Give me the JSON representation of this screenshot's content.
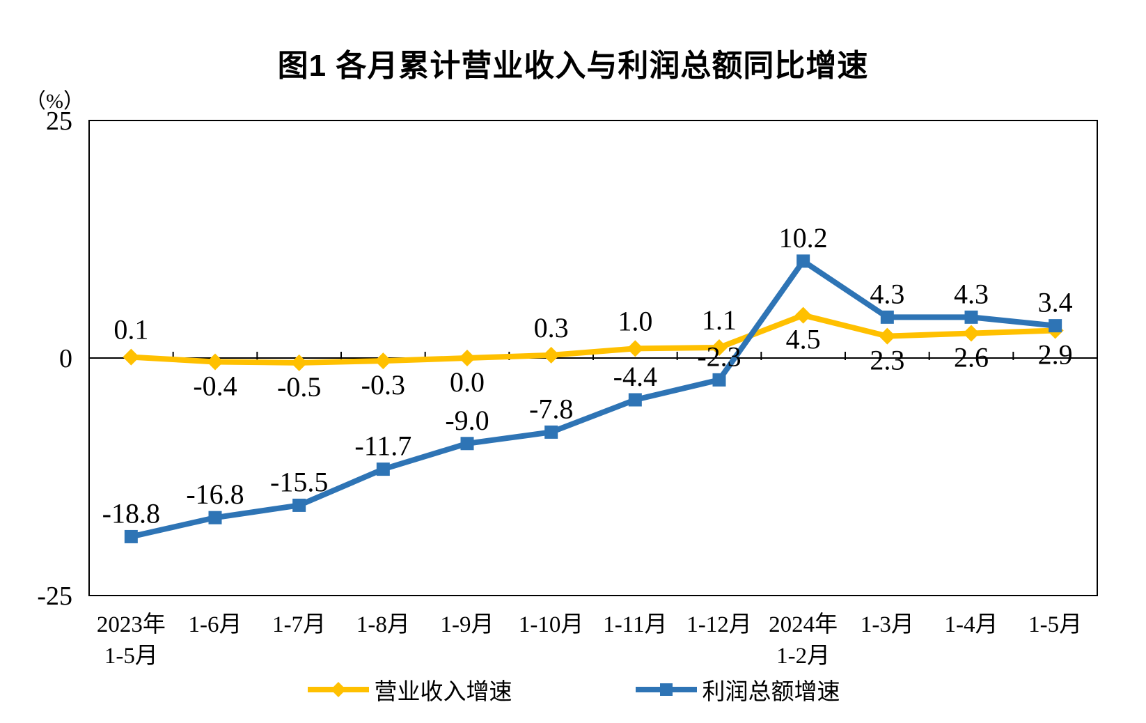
{
  "title": "图1  各月累计营业收入与利润总额同比增速",
  "y_axis": {
    "unit_label": "（%）",
    "tick_labels": [
      "25",
      "0",
      "-25"
    ],
    "tick_values": [
      25,
      0,
      -25
    ]
  },
  "chart_data": {
    "type": "line",
    "title": "图1  各月累计营业收入与利润总额同比增速",
    "unit": "%",
    "ylim": [
      -25,
      25
    ],
    "yticks": [
      25,
      0,
      -25
    ],
    "grid": false,
    "legend_position": "bottom",
    "categories": [
      {
        "label": "2023年",
        "sublabel": "1-5月"
      },
      {
        "label": "1-6月",
        "sublabel": ""
      },
      {
        "label": "1-7月",
        "sublabel": ""
      },
      {
        "label": "1-8月",
        "sublabel": ""
      },
      {
        "label": "1-9月",
        "sublabel": ""
      },
      {
        "label": "1-10月",
        "sublabel": ""
      },
      {
        "label": "1-11月",
        "sublabel": ""
      },
      {
        "label": "1-12月",
        "sublabel": ""
      },
      {
        "label": "2024年",
        "sublabel": "1-2月"
      },
      {
        "label": "1-3月",
        "sublabel": ""
      },
      {
        "label": "1-4月",
        "sublabel": ""
      },
      {
        "label": "1-5月",
        "sublabel": ""
      }
    ],
    "series": [
      {
        "name": "营业收入增速",
        "color": "#FFC000",
        "marker": "diamond",
        "values": [
          0.1,
          -0.4,
          -0.5,
          -0.3,
          0.0,
          0.3,
          1.0,
          1.1,
          4.5,
          2.3,
          2.6,
          2.9
        ],
        "label_position": [
          "above",
          "below",
          "below",
          "below",
          "below",
          "above",
          "above",
          "above",
          "below",
          "below",
          "below",
          "below"
        ]
      },
      {
        "name": "利润总额增速",
        "color": "#2E74B5",
        "marker": "square",
        "values": [
          -18.8,
          -16.8,
          -15.5,
          -11.7,
          -9.0,
          -7.8,
          -4.4,
          -2.3,
          10.2,
          4.3,
          4.3,
          3.4
        ],
        "label_position": [
          "above",
          "above",
          "above",
          "above",
          "above",
          "above",
          "above",
          "above",
          "above",
          "above",
          "above",
          "above"
        ]
      }
    ]
  },
  "legend": {
    "items": [
      {
        "label": "营业收入增速",
        "color": "#FFC000",
        "marker": "diamond"
      },
      {
        "label": "利润总额增速",
        "color": "#2E74B5",
        "marker": "square"
      }
    ]
  }
}
